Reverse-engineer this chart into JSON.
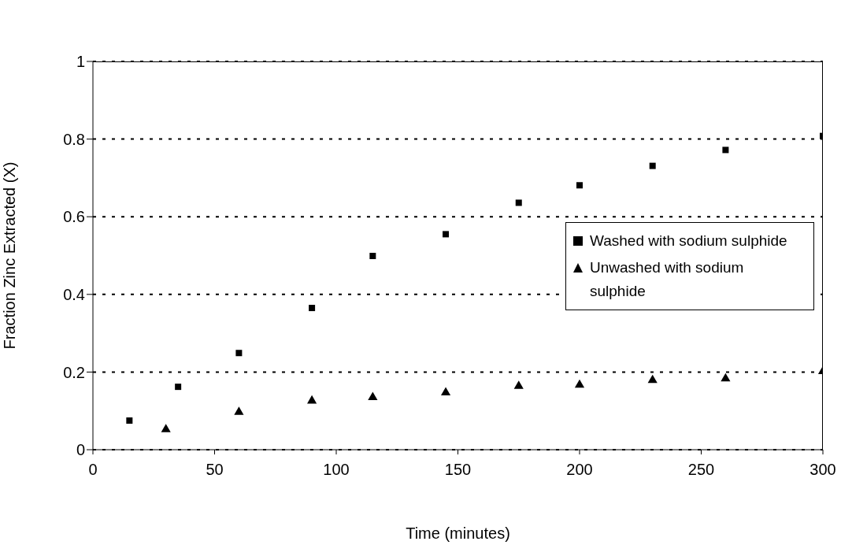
{
  "chart_data": {
    "type": "scatter",
    "xlabel": "Time (minutes)",
    "ylabel": "Fraction Zinc Extracted (X)",
    "xlim": [
      0,
      300
    ],
    "xticks": [
      0,
      50,
      100,
      150,
      200,
      250,
      300
    ],
    "ylim": [
      0,
      1
    ],
    "yticks": [
      0,
      0.2,
      0.4,
      0.6,
      0.8,
      1
    ],
    "grid": "y",
    "legend": "right",
    "series": [
      {
        "name": "Washed with sodium sulphide",
        "color": "#000000",
        "marker": "square",
        "x": [
          15,
          35,
          60,
          90,
          115,
          145,
          175,
          200,
          230,
          260,
          300
        ],
        "values": [
          0.075,
          0.162,
          0.249,
          0.365,
          0.499,
          0.555,
          0.636,
          0.681,
          0.731,
          0.772,
          0.808
        ]
      },
      {
        "name": "Unwashed with sodium sulphide",
        "color": "#000000",
        "marker": "triangle",
        "x": [
          30,
          60,
          90,
          115,
          145,
          175,
          200,
          230,
          260,
          300
        ],
        "values": [
          0.052,
          0.097,
          0.126,
          0.135,
          0.147,
          0.164,
          0.167,
          0.179,
          0.183,
          0.202
        ]
      }
    ]
  }
}
